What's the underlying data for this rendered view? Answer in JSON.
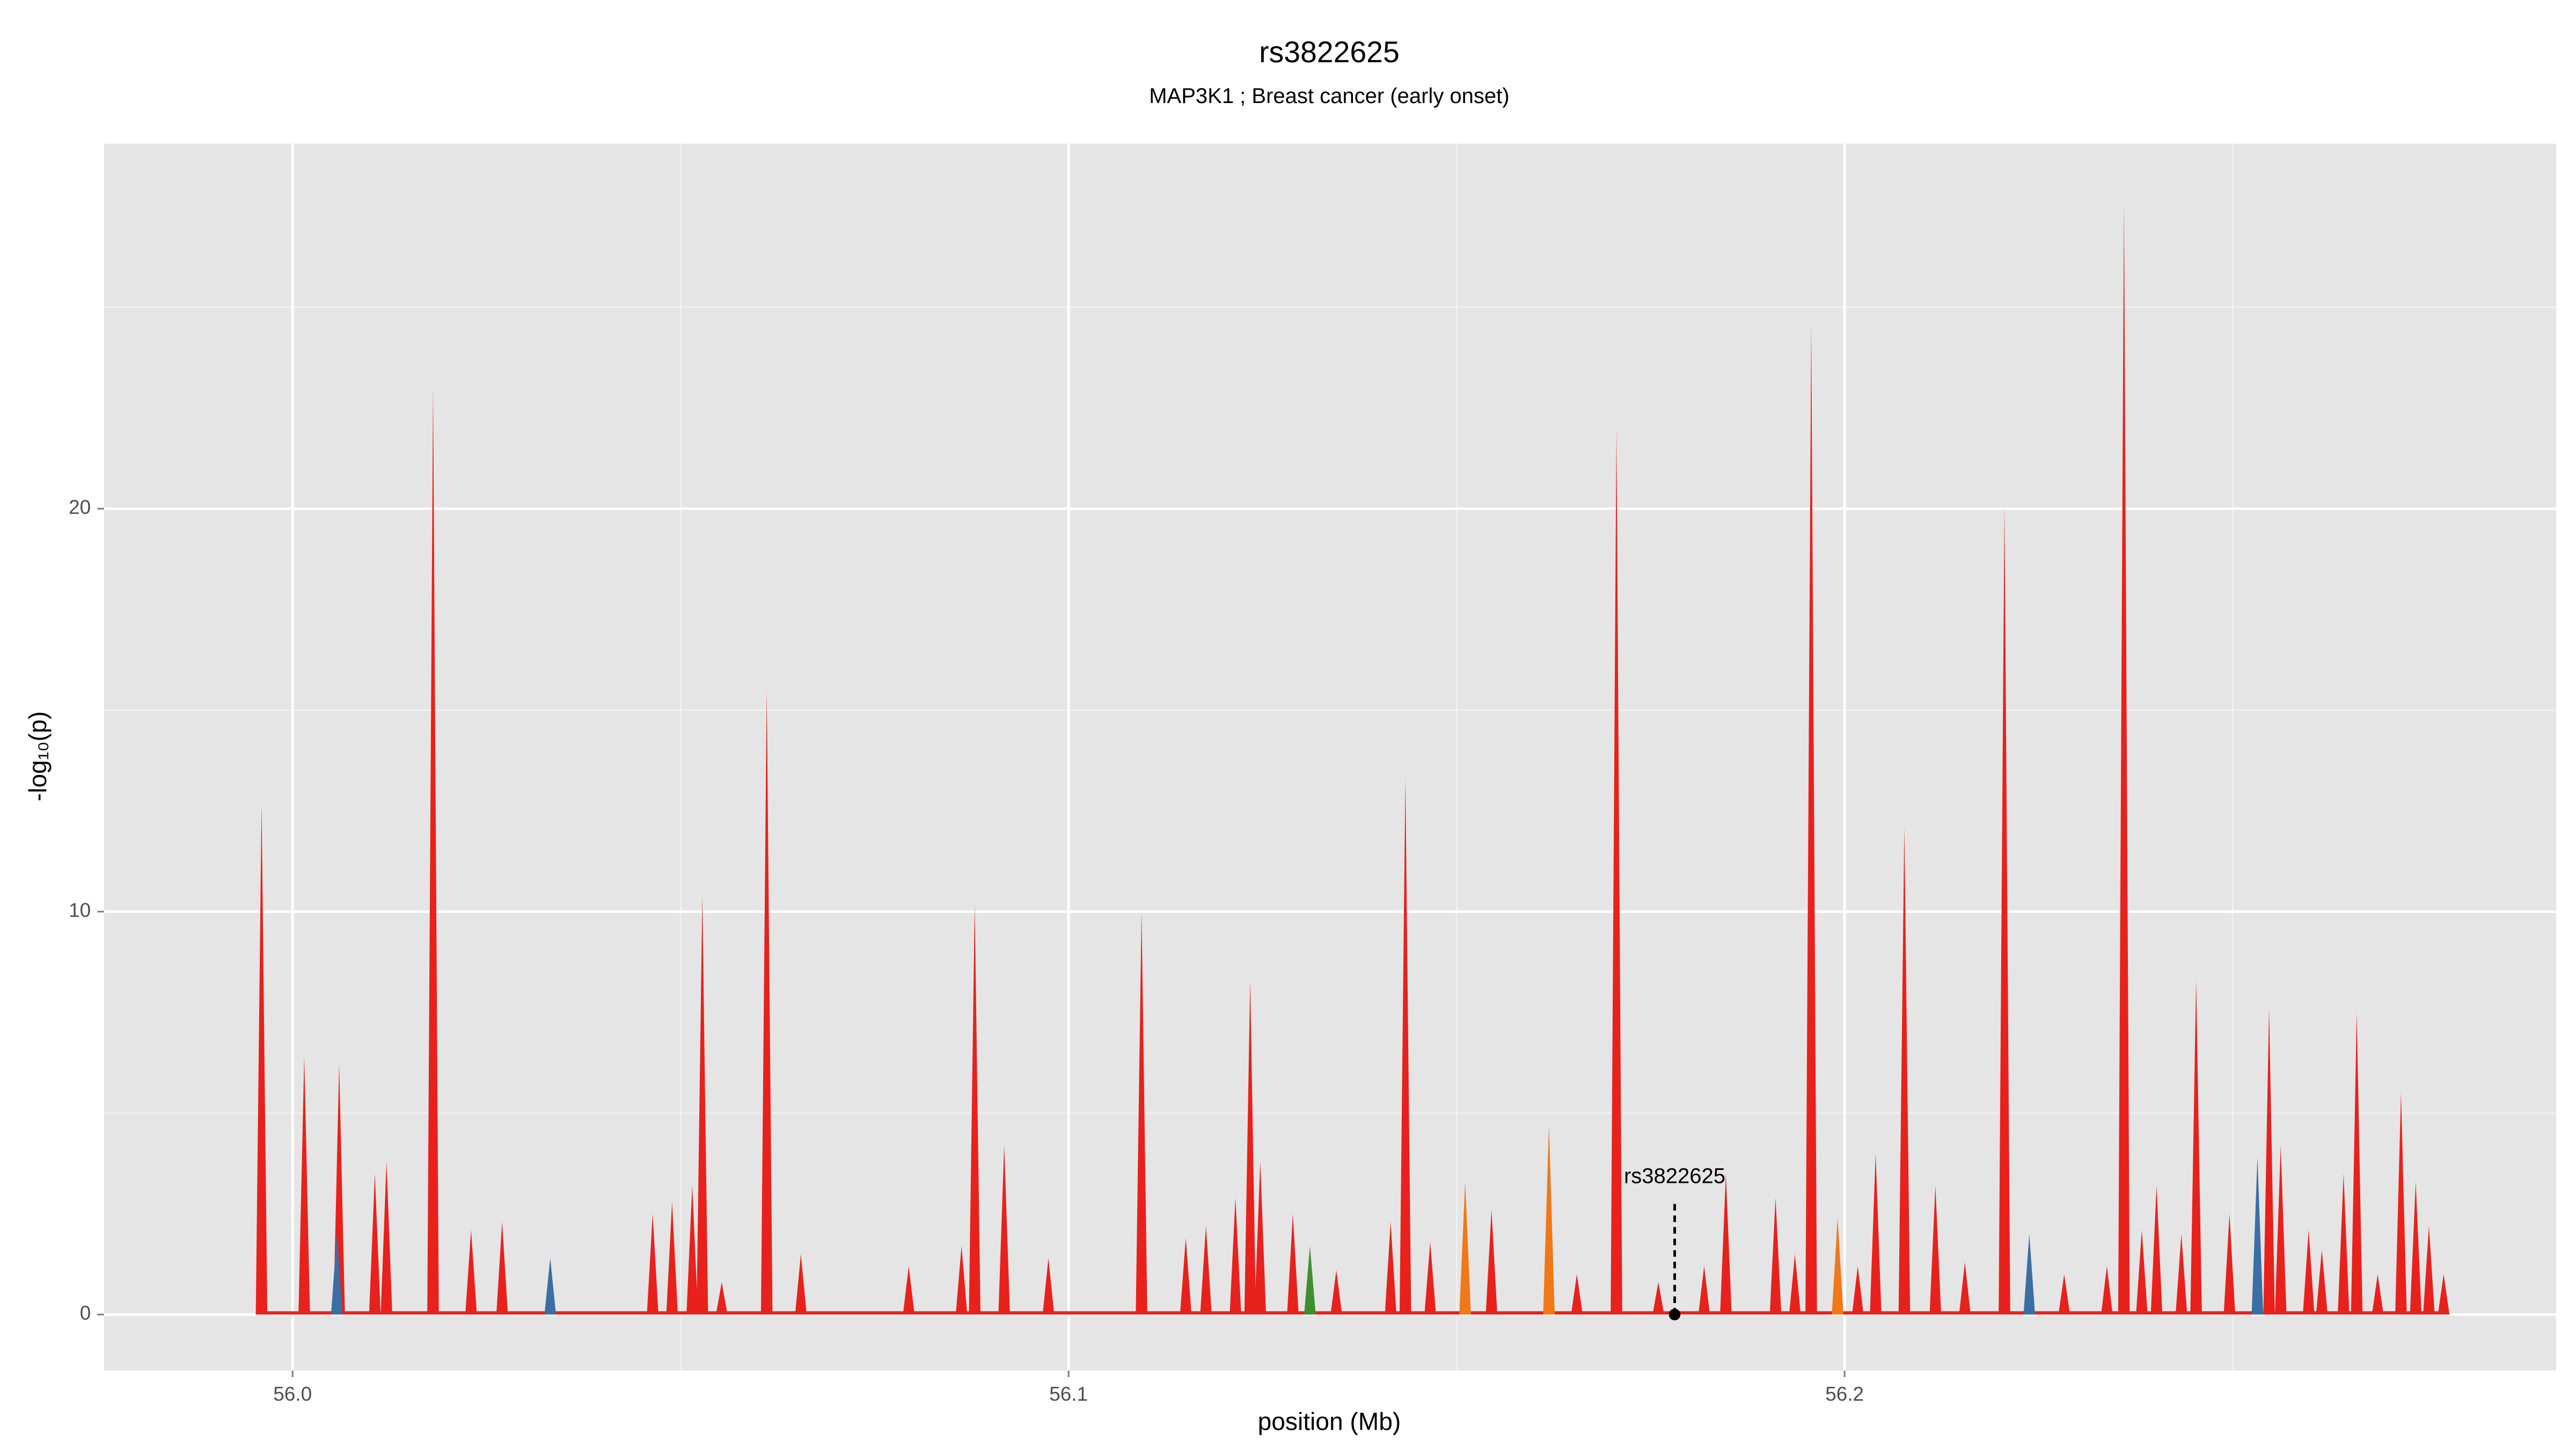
{
  "chart_data": {
    "type": "spike-area",
    "title": "rs3822625",
    "subtitle": "MAP3K1 ; Breast cancer (early onset)",
    "x_label": "position (Mb)",
    "y_label": "-log₁₀(p)",
    "xlim": [
      55.9757,
      56.2917
    ],
    "ylim": [
      -1.39,
      29.06
    ],
    "xticks": [
      {
        "value": 56.0,
        "label": "56.0"
      },
      56.1,
      56.2
    ],
    "yticks": [
      0,
      10,
      20
    ],
    "grid": true,
    "series": [
      {
        "color": "#e8211c",
        "x": [
          55.996,
          56.0015,
          56.006,
          56.0106,
          56.0121,
          56.0181,
          56.023,
          56.027,
          56.0464,
          56.0489,
          56.0515,
          56.0528,
          56.0553,
          56.0611,
          56.0655,
          56.0794,
          56.0862,
          56.0879,
          56.0917,
          56.0974,
          56.1094,
          56.1151,
          56.1177,
          56.1215,
          56.1234,
          56.1247,
          56.1289,
          56.1345,
          56.1415,
          56.1434,
          56.1466,
          56.1545,
          56.1655,
          56.1706,
          56.176,
          56.1819,
          56.1847,
          56.1911,
          56.1936,
          56.1957,
          56.2017,
          56.204,
          56.2077,
          56.2117,
          56.2155,
          56.2206,
          56.2283,
          56.2338,
          56.236,
          56.2383,
          56.2402,
          56.2434,
          56.2453,
          56.2496,
          56.2547,
          56.2562,
          56.2598,
          56.2615,
          56.2643,
          56.266,
          56.2687,
          56.2717,
          56.2736,
          56.2753,
          56.2772
        ],
        "values": [
          12.7,
          6.4,
          6.2,
          3.5,
          3.8,
          23.0,
          2.1,
          2.3,
          2.5,
          2.8,
          3.2,
          10.4,
          0.8,
          15.5,
          1.5,
          1.2,
          1.7,
          10.2,
          4.2,
          1.4,
          10.0,
          1.9,
          2.2,
          2.9,
          8.3,
          3.8,
          2.5,
          1.1,
          2.3,
          13.3,
          1.8,
          2.6,
          1.0,
          22.0,
          0.8,
          1.2,
          3.5,
          2.9,
          1.5,
          24.6,
          1.2,
          4.0,
          12.1,
          3.2,
          1.3,
          20.1,
          1.0,
          1.2,
          27.6,
          2.1,
          3.2,
          2.0,
          8.3,
          2.5,
          7.6,
          4.2,
          2.1,
          1.6,
          3.5,
          7.5,
          1.0,
          5.5,
          3.3,
          2.2,
          1.0
        ]
      },
      {
        "color": "#f07818",
        "x": [
          56.1511,
          56.1619,
          56.1991
        ],
        "values": [
          3.3,
          4.7,
          2.4
        ]
      },
      {
        "color": "#3a6ea5",
        "x": [
          56.0057,
          56.0332,
          56.2238,
          56.2532
        ],
        "values": [
          2.0,
          1.4,
          2.0,
          3.9
        ]
      },
      {
        "color": "#3f8f2e",
        "x": [
          56.1311
        ],
        "values": [
          1.7
        ]
      }
    ],
    "annotation": {
      "label": "rs3822625",
      "x": 56.1781,
      "y": 0
    }
  }
}
